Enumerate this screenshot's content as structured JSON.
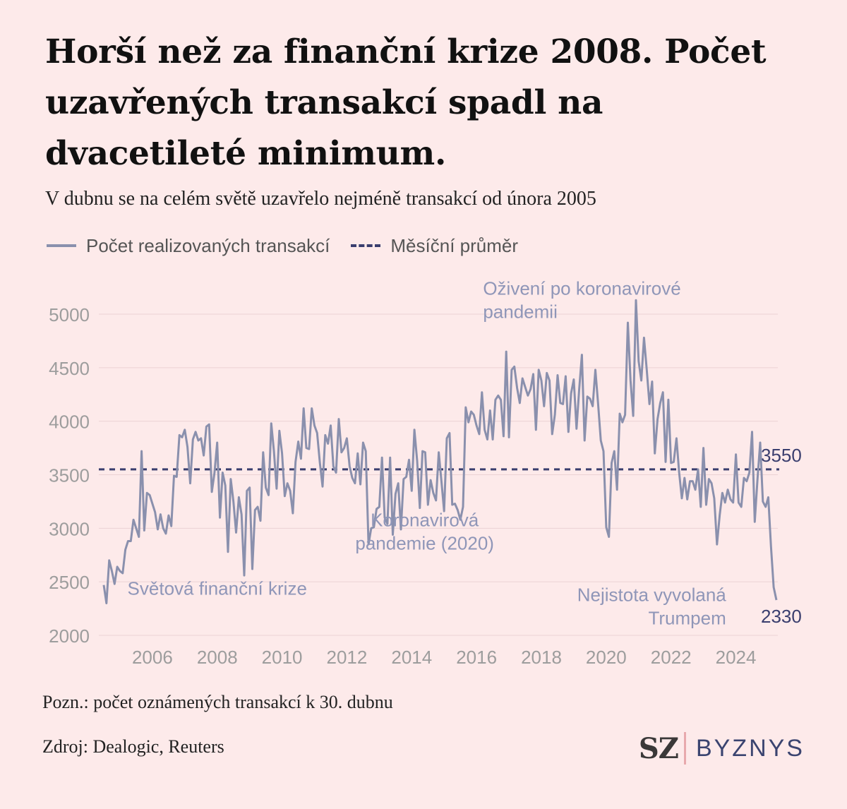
{
  "title": "Horší než za finanční krize 2008. Počet uzavřených transakcí spadl na dvacetileté minimum.",
  "subtitle": "V dubnu se na celém světě uzavřelo nejméně transakcí od února 2005",
  "legend": {
    "series_label": "Počet realizovaných transakcí",
    "average_label": "Měsíční průměr"
  },
  "note": "Pozn.: počet oznámených transakcí k 30. dubnu",
  "source": "Zdroj: Dealogic, Reuters",
  "logo": {
    "brand": "SZ",
    "section": "BYZNYS"
  },
  "colors": {
    "background": "#fdeaea",
    "series": "#8a90ad",
    "average": "#3a3e6e",
    "grid": "#ecd2d4",
    "axis_text": "#9d9d9d",
    "annotation": "#8f96b8"
  },
  "chart_data": {
    "type": "line",
    "x_range": [
      2005.0,
      2025.25
    ],
    "ylim": [
      2000,
      5000
    ],
    "y_ticks": [
      2000,
      2500,
      3000,
      3500,
      4000,
      4500,
      5000
    ],
    "x_ticks": [
      2006,
      2008,
      2010,
      2012,
      2014,
      2016,
      2018,
      2020,
      2022,
      2024
    ],
    "grid": "horizontal",
    "average": {
      "value": 3550,
      "label": "3550"
    },
    "last_value_label": "2330",
    "annotations": [
      {
        "text_lines": [
          "Světová finanční krize"
        ],
        "anchor": [
          2008.5,
          2380
        ],
        "align": "middle"
      },
      {
        "text_lines": [
          "Koronavirová",
          "pandemie (2020)"
        ],
        "anchor": [
          2014.9,
          3020
        ],
        "align": "middle"
      },
      {
        "text_lines": [
          "Oživení po koronavirové",
          "pandemii"
        ],
        "anchor": [
          2016.7,
          5180
        ],
        "align": "start"
      },
      {
        "text_lines": [
          "Nejistota vyvolaná",
          "Trumpem"
        ],
        "anchor": [
          2024.2,
          2320
        ],
        "align": "end"
      }
    ],
    "series": [
      {
        "name": "Počet realizovaných transakcí",
        "x_start": 2005.0,
        "x_step_months": 1,
        "values": [
          2470,
          2300,
          2700,
          2600,
          2480,
          2640,
          2600,
          2580,
          2800,
          2880,
          2880,
          3080,
          3000,
          2920,
          3720,
          2980,
          3330,
          3310,
          3230,
          3150,
          2990,
          3130,
          3000,
          2950,
          3120,
          3020,
          3490,
          3480,
          3870,
          3850,
          3920,
          3760,
          3420,
          3830,
          3900,
          3820,
          3840,
          3680,
          3950,
          3970,
          3340,
          3520,
          3800,
          3100,
          3520,
          3400,
          2780,
          3460,
          3250,
          2960,
          3290,
          3130,
          2560,
          3350,
          3380,
          2620,
          3170,
          3200,
          3070,
          3710,
          3380,
          3310,
          3980,
          3720,
          3370,
          3910,
          3700,
          3300,
          3420,
          3350,
          3140,
          3620,
          3810,
          3650,
          4120,
          3750,
          3740,
          4120,
          3960,
          3890,
          3610,
          3390,
          3870,
          3790,
          3960,
          3580,
          3520,
          4020,
          3710,
          3750,
          3840,
          3580,
          3470,
          3420,
          3700,
          3410,
          3800,
          3720,
          2850,
          3000,
          3010,
          3180,
          3200,
          3660,
          3100,
          3040,
          3660,
          2940,
          3320,
          3420,
          2990,
          3460,
          3480,
          3640,
          3350,
          3920,
          3630,
          3190,
          3720,
          3710,
          3220,
          3450,
          3330,
          3260,
          3710,
          3440,
          3160,
          3840,
          3890,
          3220,
          3230,
          3170,
          3080,
          3200,
          4130,
          3990,
          4090,
          4060,
          3960,
          3880,
          4270,
          3920,
          3830,
          4100,
          3830,
          4200,
          4240,
          4200,
          3860,
          4650,
          3850,
          4480,
          4510,
          4310,
          4170,
          4400,
          4320,
          4240,
          4300,
          4440,
          3920,
          4480,
          4380,
          4140,
          4450,
          4380,
          3880,
          4060,
          4430,
          4170,
          4160,
          4420,
          3900,
          4260,
          4390,
          3930,
          4300,
          4620,
          3820,
          4230,
          4210,
          4140,
          4480,
          4160,
          3820,
          3720,
          3010,
          2920,
          3610,
          3720,
          3360,
          4070,
          3990,
          4060,
          4920,
          4380,
          4050,
          5130,
          4560,
          4380,
          4780,
          4480,
          4160,
          4370,
          3700,
          4020,
          4170,
          4270,
          3620,
          4200,
          3610,
          3620,
          3840,
          3520,
          3280,
          3470,
          3270,
          3440,
          3440,
          3360,
          3550,
          3200,
          3750,
          3220,
          3460,
          3420,
          3280,
          2850,
          3120,
          3330,
          3240,
          3360,
          3270,
          3240,
          3690,
          3240,
          3200,
          3470,
          3440,
          3520,
          3900,
          3060,
          3460,
          3800,
          3250,
          3200,
          3290,
          2830,
          2450,
          2330
        ]
      }
    ]
  }
}
